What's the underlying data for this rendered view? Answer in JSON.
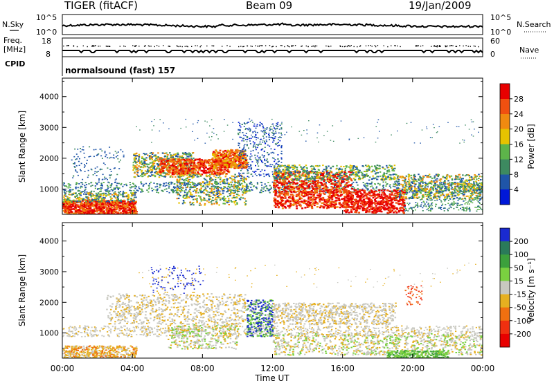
{
  "header": {
    "radar": "TIGER (fitACF)",
    "beam": "Beam 09",
    "date": "19/Jan/2009"
  },
  "noise_panel": {
    "left_label": "N.Sky",
    "right_label": "N.Search",
    "left_ticks": [
      "10^5",
      "10^0"
    ],
    "right_ticks": [
      "10^5",
      "10^0"
    ]
  },
  "freq_panel": {
    "left_label_line1": "Freq.",
    "left_label_line2": "[MHz]",
    "right_label": "Nave",
    "left_ticks": [
      "18",
      "8"
    ],
    "right_ticks": [
      "60",
      "0"
    ]
  },
  "cpid_panel": {
    "label": "CPID",
    "text": "normalsound (fast) 157"
  },
  "chart_data": [
    {
      "type": "heatmap",
      "title": "",
      "ylabel": "Slant Range [km]",
      "yticks": [
        "1000",
        "2000",
        "3000",
        "4000"
      ],
      "ylim": [
        180,
        4600
      ],
      "colorbar_label": "Power [dB]",
      "colorbar_ticks": [
        "4",
        "8",
        "12",
        "16",
        "20",
        "24",
        "28"
      ],
      "colorbar_range": [
        0,
        32
      ],
      "colors": [
        "#0018d8",
        "#1f55a8",
        "#3d8a60",
        "#5db44a",
        "#e6c200",
        "#f08a10",
        "#f05010",
        "#e80000"
      ]
    },
    {
      "type": "heatmap",
      "title": "",
      "ylabel": "Slant Range [km]",
      "yticks": [
        "1000",
        "2000",
        "3000",
        "4000"
      ],
      "ylim": [
        180,
        4600
      ],
      "colorbar_label": "Velocity [m s⁻¹]",
      "colorbar_ticks": [
        "200",
        "100",
        "50",
        "15",
        "-15",
        "-50",
        "-100",
        "-200"
      ],
      "colors": [
        "#1a2ad0",
        "#2a7a5a",
        "#3ca03c",
        "#7ad040",
        "#c8c8c0",
        "#e6b020",
        "#f07010",
        "#f03010",
        "#e80000"
      ],
      "xlabel": "Time UT",
      "xticks": [
        "00:00",
        "04:00",
        "08:00",
        "12:00",
        "16:00",
        "20:00",
        "00:00"
      ]
    }
  ]
}
